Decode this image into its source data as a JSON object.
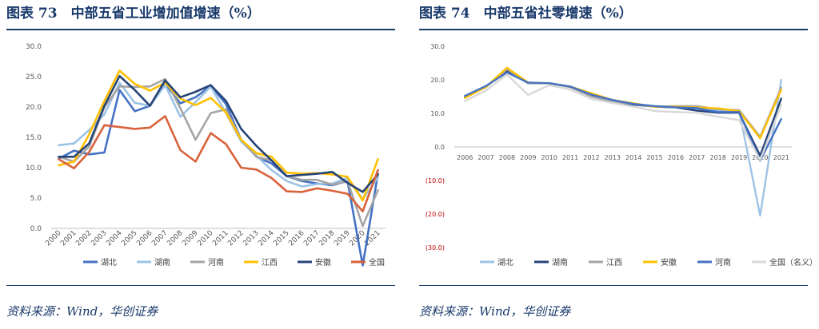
{
  "left": {
    "title": "图表 73　中部五省工业增加值增速（%）",
    "source": "资料来源：Wind，华创证券"
  },
  "right": {
    "title": "图表 74　中部五省社零增速（%）",
    "source": "资料来源：Wind，华创证券"
  },
  "colors": {
    "湖北": "#4472c4",
    "湖南": "#9dc3e6",
    "河南": "#a5a5a5",
    "江西": "#ffc000",
    "安徽": "#264478",
    "全国": "#d9623b",
    "全国(名义)": "#d9d9d9"
  },
  "chart_data": [
    {
      "type": "line",
      "categories": [
        "2000",
        "2001",
        "2002",
        "2003",
        "2004",
        "2005",
        "2006",
        "2007",
        "2008",
        "2009",
        "2010",
        "2011",
        "2012",
        "2013",
        "2014",
        "2015",
        "2016",
        "2017",
        "2018",
        "2019",
        "2020",
        "2021"
      ],
      "ylim": [
        0,
        30
      ],
      "yticks": [
        "0.0",
        "5.0",
        "10.0",
        "15.0",
        "20.0",
        "25.0",
        "30.0"
      ],
      "legend_position": "bottom",
      "series": [
        {
          "name": "湖北",
          "color": "#4472c4",
          "values": [
            11.5,
            12.8,
            12.2,
            12.5,
            22.8,
            19.3,
            20.2,
            23.8,
            20.6,
            21.6,
            23.5,
            20.5,
            14.6,
            11.8,
            10.7,
            8.6,
            7.8,
            7.4,
            7.1,
            7.8,
            -6.1,
            9.0
          ]
        },
        {
          "name": "湖南",
          "color": "#9dc3e6",
          "values": [
            13.7,
            14.0,
            16.2,
            18.8,
            24.0,
            20.7,
            20.2,
            23.6,
            18.4,
            20.8,
            23.4,
            19.0,
            14.3,
            12.0,
            9.6,
            7.8,
            6.9,
            7.3,
            7.4,
            8.3,
            4.8,
            8.4
          ]
        },
        {
          "name": "河南",
          "color": "#a5a5a5",
          "values": [
            11.8,
            11.0,
            13.5,
            20.0,
            23.4,
            23.3,
            23.4,
            24.6,
            19.8,
            14.6,
            19.0,
            19.6,
            14.6,
            11.8,
            11.2,
            8.6,
            8.0,
            8.0,
            7.2,
            7.8,
            0.4,
            6.3
          ]
        },
        {
          "name": "江西",
          "color": "#ffc000",
          "values": [
            10.4,
            11.0,
            15.5,
            21.0,
            26.0,
            23.8,
            22.7,
            24.0,
            21.4,
            20.3,
            21.5,
            19.1,
            14.6,
            12.4,
            11.8,
            9.2,
            9.0,
            9.1,
            8.9,
            8.5,
            4.6,
            11.4
          ]
        },
        {
          "name": "安徽",
          "color": "#264478",
          "values": [
            11.8,
            11.8,
            14.0,
            20.2,
            25.1,
            22.8,
            20.2,
            24.4,
            21.6,
            22.5,
            23.6,
            21.0,
            16.4,
            13.6,
            11.2,
            8.6,
            8.8,
            9.0,
            9.3,
            7.5,
            6.0,
            8.9
          ]
        },
        {
          "name": "全国",
          "color": "#d9623b",
          "values": [
            11.4,
            9.9,
            12.6,
            17.0,
            16.7,
            16.4,
            16.6,
            18.5,
            12.9,
            11.0,
            15.7,
            13.9,
            10.0,
            9.7,
            8.3,
            6.1,
            6.0,
            6.6,
            6.2,
            5.7,
            2.8,
            9.6
          ]
        }
      ]
    },
    {
      "type": "line",
      "categories": [
        "2006",
        "2007",
        "2008",
        "2009",
        "2010",
        "2011",
        "2012",
        "2013",
        "2014",
        "2015",
        "2016",
        "2017",
        "2018",
        "2019",
        "2020",
        "2021"
      ],
      "ylim": [
        -30,
        30
      ],
      "yticks": [
        "30.0",
        "20.0",
        "10.0",
        "0.0",
        "(10.0)",
        "(20.0)",
        "(30.0)"
      ],
      "legend_position": "bottom",
      "series": [
        {
          "name": "湖北",
          "color": "#9dc3e6",
          "values": [
            15.0,
            18.0,
            23.0,
            19.2,
            19.0,
            18.0,
            15.5,
            13.8,
            12.8,
            12.0,
            11.8,
            11.0,
            10.8,
            10.9,
            -20.5,
            20.0
          ]
        },
        {
          "name": "湖南",
          "color": "#264478",
          "values": [
            15.0,
            18.0,
            22.8,
            19.0,
            19.0,
            18.0,
            15.2,
            13.5,
            12.6,
            12.0,
            11.8,
            10.8,
            10.2,
            10.2,
            -2.6,
            14.4
          ]
        },
        {
          "name": "江西",
          "color": "#a5a5a5",
          "values": [
            14.8,
            17.8,
            23.2,
            19.0,
            19.0,
            17.8,
            15.0,
            13.5,
            12.8,
            12.0,
            12.2,
            12.2,
            11.2,
            11.0,
            3.0,
            17.7
          ]
        },
        {
          "name": "安徽",
          "color": "#ffc000",
          "values": [
            14.6,
            17.9,
            23.6,
            19.2,
            19.0,
            18.0,
            16.0,
            14.0,
            13.0,
            12.0,
            12.0,
            11.8,
            11.5,
            10.7,
            2.6,
            17.1
          ]
        },
        {
          "name": "河南",
          "color": "#4472c4",
          "values": [
            15.2,
            18.2,
            22.2,
            19.2,
            19.0,
            18.0,
            15.6,
            14.0,
            12.8,
            12.2,
            11.8,
            11.6,
            10.4,
            10.4,
            -4.1,
            8.3
          ]
        },
        {
          "name": "全国（名义）",
          "color": "#d9d9d9",
          "values": [
            13.7,
            16.8,
            21.6,
            15.5,
            18.4,
            17.1,
            14.3,
            13.1,
            12.0,
            10.7,
            10.4,
            10.2,
            9.0,
            8.0,
            -3.9,
            12.5
          ]
        }
      ]
    }
  ]
}
